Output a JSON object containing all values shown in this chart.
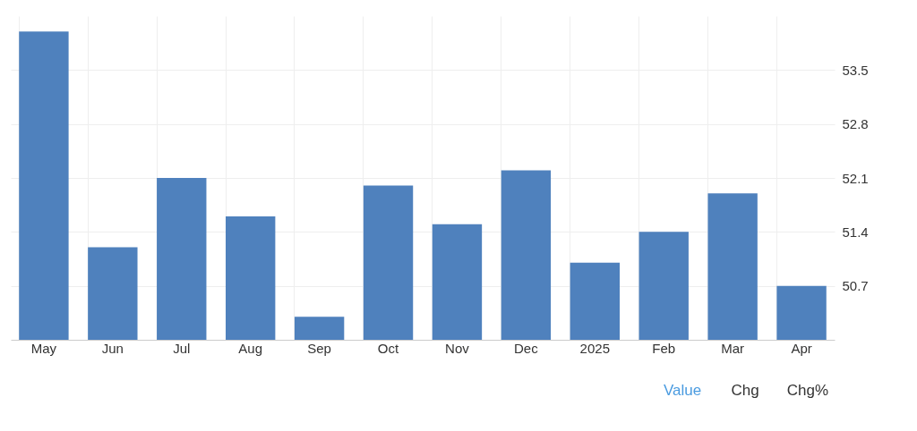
{
  "chart_data": {
    "type": "bar",
    "categories": [
      "May",
      "Jun",
      "Jul",
      "Aug",
      "Sep",
      "Oct",
      "Nov",
      "Dec",
      "2025",
      "Feb",
      "Mar",
      "Apr"
    ],
    "values": [
      54.0,
      51.2,
      52.1,
      51.6,
      50.3,
      52.0,
      51.5,
      52.2,
      51.0,
      51.4,
      51.9,
      50.7
    ],
    "color": "#4f81bd",
    "ylim": [
      50.0,
      54.2
    ],
    "yticks": [
      50.7,
      51.4,
      52.1,
      52.8,
      53.5
    ],
    "grid": true,
    "annotations": [
      "Value",
      "Chg",
      "Chg%"
    ]
  }
}
